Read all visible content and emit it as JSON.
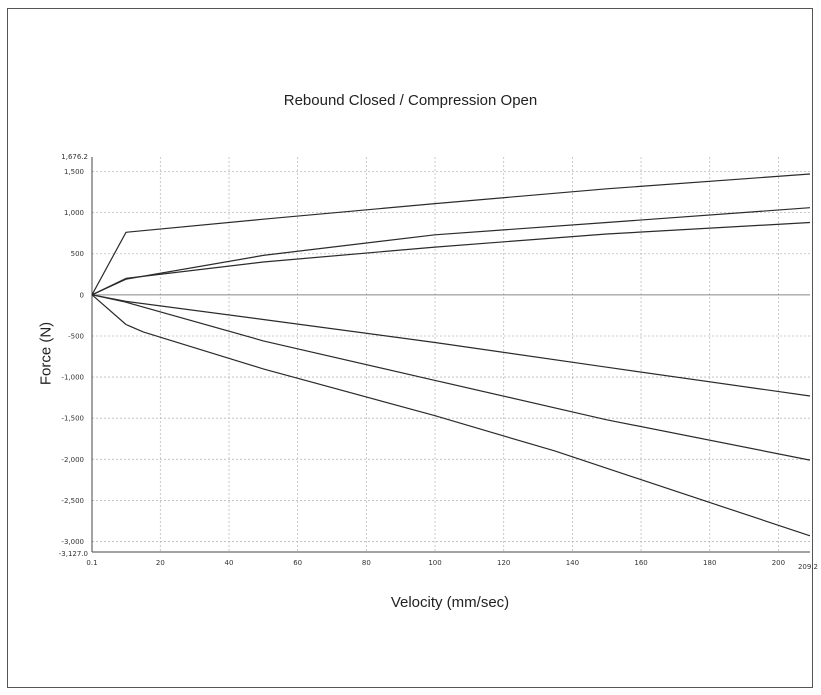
{
  "chart_data": {
    "type": "line",
    "title": "Rebound Closed / Compression Open",
    "xlabel": "Velocity (mm/sec)",
    "ylabel": "Force (N)",
    "xlim": [
      0.1,
      209.2
    ],
    "ylim": [
      -3127.0,
      1676.2
    ],
    "grid": true,
    "x_ticks": [
      20,
      40,
      60,
      80,
      100,
      120,
      140,
      160,
      180,
      200
    ],
    "x_tick_labels": [
      "20",
      "40",
      "60",
      "80",
      "100",
      "120",
      "140",
      "160",
      "180",
      "200"
    ],
    "x_min_label": "0.1",
    "x_max_label": "209.2",
    "y_ticks": [
      1500,
      1000,
      500,
      0,
      -500,
      -1000,
      -1500,
      -2000,
      -2500,
      -3000
    ],
    "y_tick_labels": [
      "1,500",
      "1,000",
      "500",
      "0",
      "-500",
      "-1,000",
      "-1,500",
      "-2,000",
      "-2,500",
      "-3,000"
    ],
    "y_max_label": "1,676.2",
    "y_min_label": "-3,127.0",
    "series": [
      {
        "x": [
          0.1,
          10,
          50,
          100,
          150,
          209.2
        ],
        "y": [
          0,
          760,
          920,
          1110,
          1290,
          1470
        ]
      },
      {
        "x": [
          0.1,
          10,
          50,
          100,
          150,
          209.2
        ],
        "y": [
          0,
          190,
          480,
          730,
          880,
          1060
        ]
      },
      {
        "x": [
          0.1,
          10,
          50,
          100,
          150,
          209.2
        ],
        "y": [
          0,
          200,
          400,
          580,
          740,
          880
        ]
      },
      {
        "x": [
          0.1,
          10,
          50,
          100,
          150,
          209.2
        ],
        "y": [
          0,
          -80,
          -300,
          -580,
          -880,
          -1230
        ]
      },
      {
        "x": [
          0.1,
          10,
          50,
          100,
          150,
          209.2
        ],
        "y": [
          0,
          -90,
          -560,
          -1040,
          -1520,
          -2010
        ]
      },
      {
        "x": [
          0.1,
          10,
          15,
          50,
          100,
          135,
          209.2
        ],
        "y": [
          0,
          -360,
          -450,
          -900,
          -1470,
          -1900,
          -2930
        ]
      }
    ],
    "colors": {
      "line": "#2b2b2b",
      "grid": "#bbbbbb",
      "axis": "#444444"
    }
  }
}
